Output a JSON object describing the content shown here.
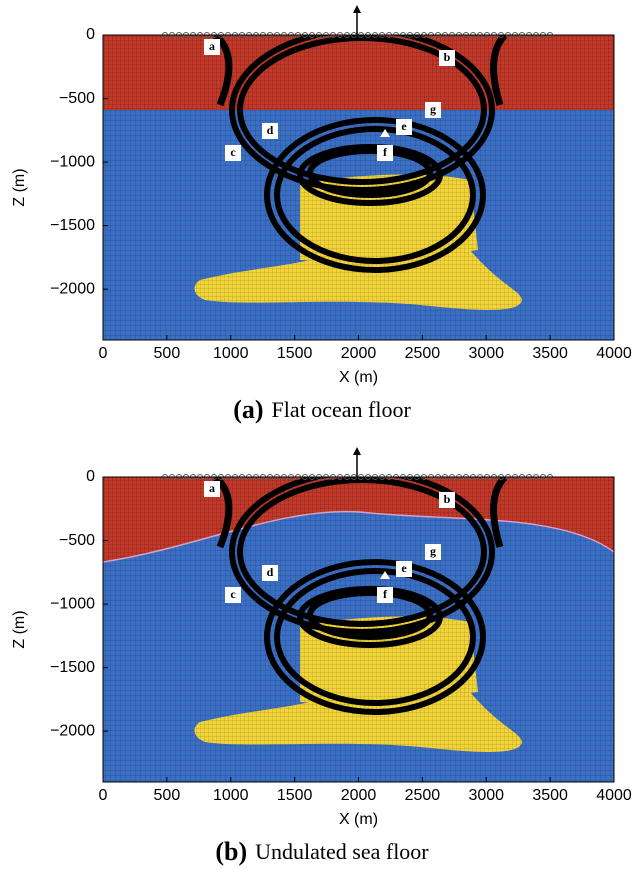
{
  "chart_data": [
    {
      "type": "field",
      "label": "(a)",
      "caption": "Flat ocean floor",
      "xlabel": "X (m)",
      "ylabel": "Z (m)",
      "xlim": [
        0,
        4000
      ],
      "ylim": [
        -2400,
        0
      ],
      "xticks": [
        0,
        500,
        1000,
        1500,
        2000,
        2500,
        3000,
        3500,
        4000
      ],
      "yticks": [
        0,
        {
          "value": -500,
          "label": "−500"
        },
        {
          "value": -1000,
          "label": "−1000"
        },
        {
          "value": -1500,
          "label": "−1500"
        },
        {
          "value": -2000,
          "label": "−2000"
        }
      ],
      "annotations": [
        "a",
        "b",
        "c",
        "d",
        "e",
        "f",
        "g"
      ]
    },
    {
      "type": "field",
      "label": "(b)",
      "caption": "Undulated sea floor",
      "xlabel": "X (m)",
      "ylabel": "Z (m)",
      "xlim": [
        0,
        4000
      ],
      "ylim": [
        -2400,
        0
      ],
      "xticks": [
        0,
        500,
        1000,
        1500,
        2000,
        2500,
        3000,
        3500,
        4000
      ],
      "yticks": [
        0,
        {
          "value": -500,
          "label": "−500"
        },
        {
          "value": -1000,
          "label": "−1000"
        },
        {
          "value": -1500,
          "label": "−1500"
        },
        {
          "value": -2000,
          "label": "−2000"
        }
      ],
      "annotations": [
        "a",
        "b",
        "c",
        "d",
        "e",
        "f",
        "g"
      ]
    }
  ]
}
